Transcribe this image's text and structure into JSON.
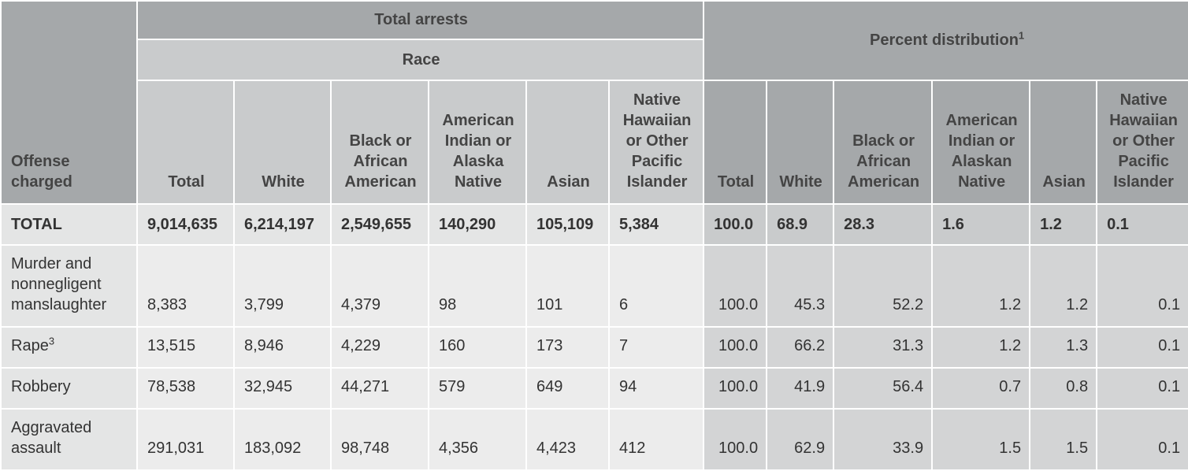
{
  "header": {
    "offense_charged": "Offense charged",
    "total_arrests": "Total arrests",
    "race": "Race",
    "percent_distribution": "Percent distribution",
    "percent_distribution_note": "1",
    "arrest_columns": [
      "Total",
      "White",
      "Black or African American",
      "American Indian or Alaska Native",
      "Asian",
      "Native Hawaiian or Other Pacific Islander"
    ],
    "percent_columns": [
      "Total",
      "White",
      "Black or African American",
      "American Indian or Alaskan Native",
      "Asian",
      "Native Hawaiian or Other Pacific Islander"
    ]
  },
  "rows": [
    {
      "offense": "TOTAL",
      "note": "",
      "arrests": [
        "9,014,635",
        "6,214,197",
        "2,549,655",
        "140,290",
        "105,109",
        "5,384"
      ],
      "percents": [
        "100.0",
        "68.9",
        "28.3",
        "1.6",
        "1.2",
        "0.1"
      ]
    },
    {
      "offense": "Murder and nonnegligent manslaughter",
      "note": "",
      "arrests": [
        "8,383",
        "3,799",
        "4,379",
        "98",
        "101",
        "6"
      ],
      "percents": [
        "100.0",
        "45.3",
        "52.2",
        "1.2",
        "1.2",
        "0.1"
      ]
    },
    {
      "offense": "Rape",
      "note": "3",
      "arrests": [
        "13,515",
        "8,946",
        "4,229",
        "160",
        "173",
        "7"
      ],
      "percents": [
        "100.0",
        "66.2",
        "31.3",
        "1.2",
        "1.3",
        "0.1"
      ]
    },
    {
      "offense": "Robbery",
      "note": "",
      "arrests": [
        "78,538",
        "32,945",
        "44,271",
        "579",
        "649",
        "94"
      ],
      "percents": [
        "100.0",
        "41.9",
        "56.4",
        "0.7",
        "0.8",
        "0.1"
      ]
    },
    {
      "offense": "Aggravated assault",
      "note": "",
      "arrests": [
        "291,031",
        "183,092",
        "98,748",
        "4,356",
        "4,423",
        "412"
      ],
      "percents": [
        "100.0",
        "62.9",
        "33.9",
        "1.5",
        "1.5",
        "0.1"
      ]
    }
  ]
}
